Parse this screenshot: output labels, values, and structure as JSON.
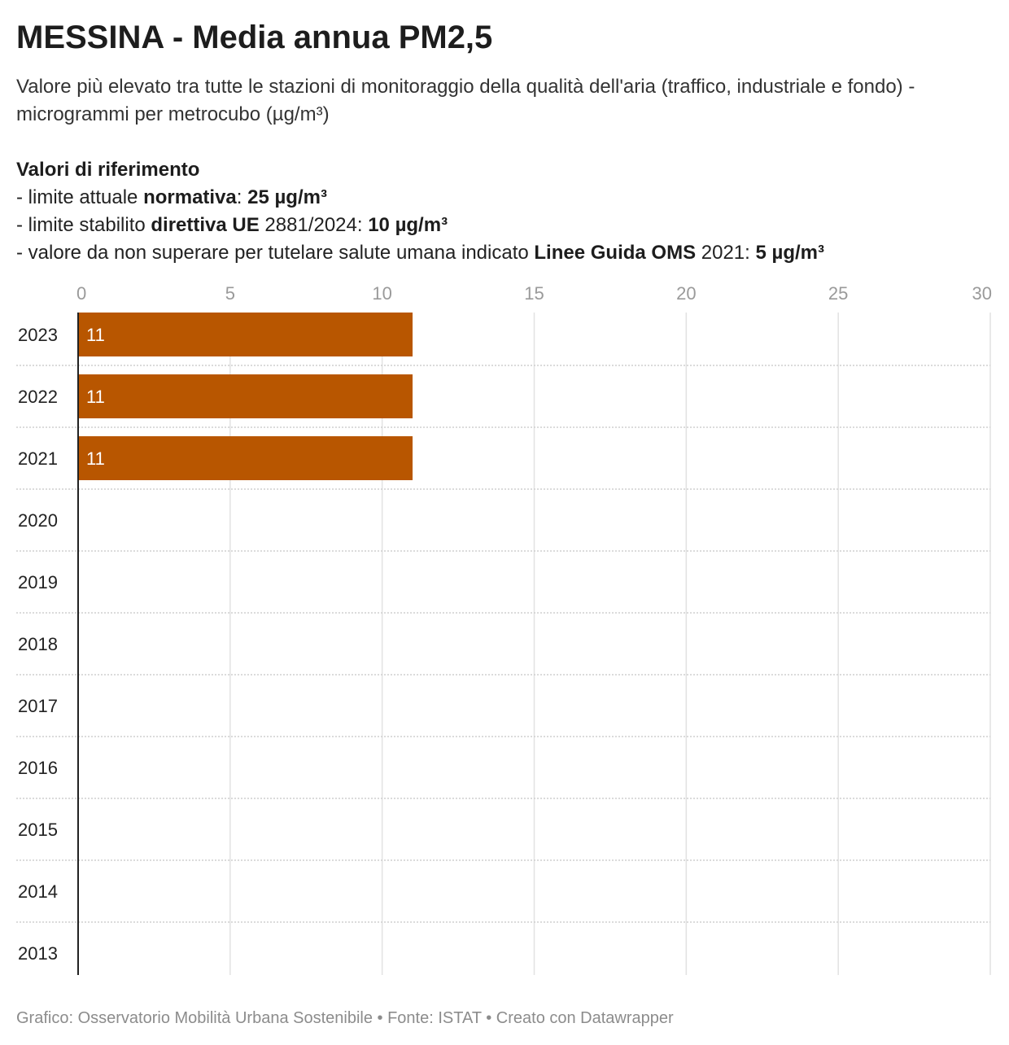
{
  "title": "MESSINA - Media annua PM2,5",
  "subtitle": "Valore più elevato tra tutte le stazioni di monitoraggio della qualità dell'aria (traffico, industriale e fondo) - microgrammi per metrocubo (µg/m³)",
  "references": {
    "heading": "Valori di riferimento",
    "line1": {
      "pre": "- limite attuale ",
      "bold1": "normativa",
      "mid": ": ",
      "bold2": "25 µg/m³"
    },
    "line2": {
      "pre": "- limite stabilito ",
      "bold1": "direttiva UE",
      "mid": " 2881/2024: ",
      "bold2": "10 µg/m³"
    },
    "line3": {
      "pre": "- valore da non superare per tutelare salute umana indicato ",
      "bold1": "Linee Guida OMS",
      "mid": " 2021: ",
      "bold2": "5 µg/m³"
    }
  },
  "chart_data": {
    "type": "bar",
    "orientation": "horizontal",
    "categories": [
      "2023",
      "2022",
      "2021",
      "2020",
      "2019",
      "2018",
      "2017",
      "2016",
      "2015",
      "2014",
      "2013"
    ],
    "values": [
      11,
      11,
      11,
      null,
      null,
      null,
      null,
      null,
      null,
      null,
      null
    ],
    "value_labels": [
      "11",
      "11",
      "11",
      "",
      "",
      "",
      "",
      "",
      "",
      "",
      ""
    ],
    "xlim": [
      0,
      30
    ],
    "xticks": [
      0,
      5,
      10,
      15,
      20,
      25,
      30
    ],
    "x_axis_position": "top",
    "grid": true,
    "bar_color": "#b85600"
  },
  "footer": "Grafico: Osservatorio Mobilità Urbana Sostenibile • Fonte: ISTAT • Creato con Datawrapper"
}
